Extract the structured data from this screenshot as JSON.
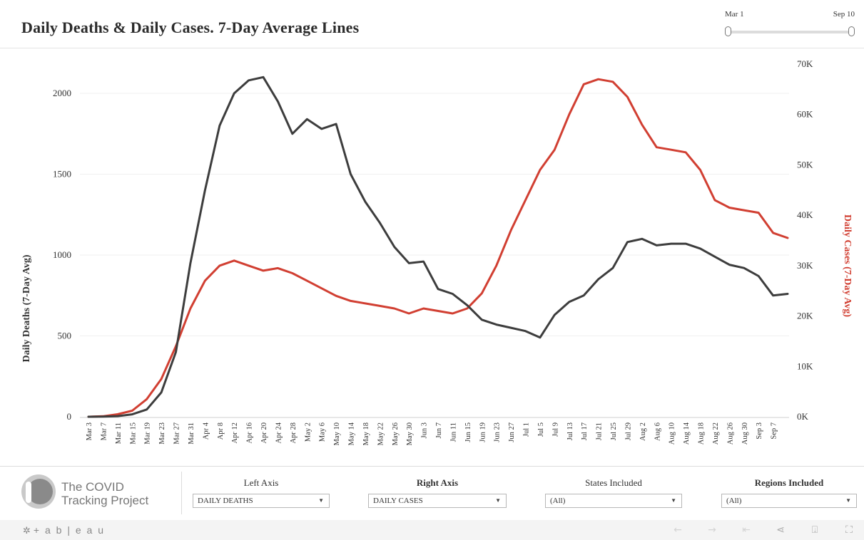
{
  "header": {
    "title": "Daily Deaths & Daily Cases. 7-Day Average Lines"
  },
  "date_slider": {
    "start_label": "Mar 1",
    "end_label": "Sep 10"
  },
  "chart_data": {
    "type": "line",
    "x": [
      "Mar 3",
      "Mar 7",
      "Mar 11",
      "Mar 15",
      "Mar 19",
      "Mar 23",
      "Mar 27",
      "Mar 31",
      "Apr 4",
      "Apr 8",
      "Apr 12",
      "Apr 16",
      "Apr 20",
      "Apr 24",
      "Apr 28",
      "May 2",
      "May 6",
      "May 10",
      "May 14",
      "May 18",
      "May 22",
      "May 26",
      "May 30",
      "Jun 3",
      "Jun 7",
      "Jun 11",
      "Jun 15",
      "Jun 19",
      "Jun 23",
      "Jun 27",
      "Jul 1",
      "Jul 5",
      "Jul 9",
      "Jul 13",
      "Jul 17",
      "Jul 21",
      "Jul 25",
      "Jul 29",
      "Aug 2",
      "Aug 6",
      "Aug 10",
      "Aug 14",
      "Aug 18",
      "Aug 22",
      "Aug 26",
      "Aug 30",
      "Sep 3",
      "Sep 7"
    ],
    "x_end": "Sep 10",
    "ylabel_left": "Daily Deaths (7-Day Avg)",
    "ylabel_right": "Daily Cases (7-Day Avg)",
    "left_axis": {
      "ticks": [
        0,
        500,
        1000,
        1500,
        2000
      ],
      "tick_labels": [
        "0",
        "500",
        "1000",
        "1500",
        "2000"
      ],
      "range": [
        0,
        2150
      ]
    },
    "right_axis": {
      "ticks": [
        0,
        10000,
        20000,
        30000,
        40000,
        50000,
        60000,
        70000
      ],
      "tick_labels": [
        "0K",
        "10K",
        "20K",
        "30K",
        "40K",
        "50K",
        "60K",
        "70K"
      ],
      "range": [
        0,
        70000
      ]
    },
    "grid": true,
    "series": [
      {
        "name": "Daily Deaths (7-Day Avg)",
        "axis": "left",
        "color": "#3d3d3d",
        "values": [
          0,
          1,
          4,
          15,
          45,
          150,
          400,
          950,
          1400,
          1800,
          2000,
          2080,
          2100,
          1950,
          1750,
          1840,
          1780,
          1810,
          1500,
          1330,
          1200,
          1050,
          950,
          960,
          790,
          760,
          690,
          600,
          570,
          550,
          530,
          490,
          630,
          710,
          750,
          850,
          920,
          1080,
          1100,
          1060,
          1070,
          1070,
          1040,
          990,
          940,
          920,
          870,
          750
        ],
        "end_value": 760
      },
      {
        "name": "Daily Cases (7-Day Avg)",
        "axis": "right",
        "color": "#d13f32",
        "values": [
          0,
          100,
          500,
          1200,
          3500,
          7500,
          14000,
          21500,
          27000,
          30000,
          31000,
          30000,
          29000,
          29500,
          28500,
          27000,
          25500,
          24000,
          23000,
          22500,
          22000,
          21500,
          20500,
          21500,
          21000,
          20500,
          21500,
          24500,
          30000,
          37000,
          43000,
          49000,
          53000,
          60000,
          66000,
          67000,
          66500,
          63500,
          58000,
          53500,
          53000,
          52500,
          49000,
          43000,
          41500,
          41000,
          40500,
          36500
        ],
        "end_value": 35500
      }
    ]
  },
  "footer": {
    "logo_line1": "The COVID",
    "logo_line2": "Tracking Project",
    "filters": [
      {
        "label": "Left Axis",
        "value": "DAILY DEATHS"
      },
      {
        "label": "Right Axis",
        "value": "DAILY CASES"
      },
      {
        "label": "States Included",
        "value": "(All)"
      },
      {
        "label": "Regions Included",
        "value": "(All)"
      }
    ],
    "brand": "+ a b | e a u",
    "icons": [
      "undo-icon",
      "redo-icon",
      "revert-icon",
      "share-icon",
      "download-icon",
      "fullscreen-icon"
    ]
  }
}
